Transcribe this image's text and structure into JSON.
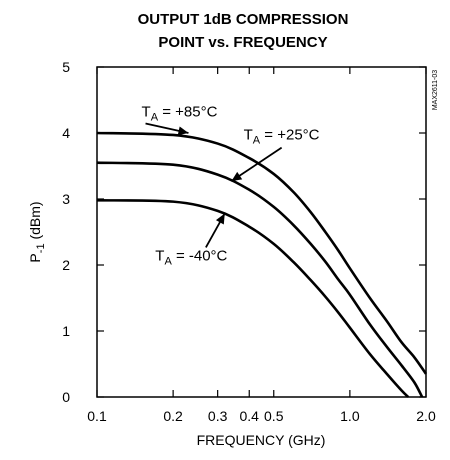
{
  "chart_data": {
    "type": "line",
    "title_lines": [
      "OUTPUT 1dB COMPRESSION",
      "POINT vs. FREQUENCY"
    ],
    "xlabel": "FREQUENCY (GHz)",
    "ylabel_main": "P",
    "ylabel_sub": "-1",
    "ylabel_rest": " (dBm)",
    "x_scale": "log",
    "xlim": [
      0.1,
      2.0
    ],
    "ylim": [
      0,
      5
    ],
    "x_ticks": [
      0.1,
      0.2,
      0.3,
      0.4,
      0.5,
      1.0,
      2.0
    ],
    "x_tick_labels": [
      "0.1",
      "0.2",
      "0.3",
      "0.4",
      "0.5",
      "1.0",
      "2.0"
    ],
    "y_ticks": [
      0,
      1,
      2,
      3,
      4,
      5
    ],
    "y_tick_labels": [
      "0",
      "1",
      "2",
      "3",
      "4",
      "5"
    ],
    "grid": false,
    "figure_id": "MAX2611-03",
    "series": [
      {
        "name": "TA = +85°C",
        "label_main": "T",
        "label_sub": "A",
        "label_rest": " = +85°C",
        "x": [
          0.1,
          0.2,
          0.3,
          0.4,
          0.5,
          0.6,
          0.7,
          0.8,
          0.9,
          1.0,
          1.2,
          1.4,
          1.6,
          1.8,
          2.0
        ],
        "y": [
          4.0,
          3.97,
          3.84,
          3.62,
          3.38,
          3.1,
          2.8,
          2.5,
          2.22,
          1.95,
          1.5,
          1.15,
          0.83,
          0.6,
          0.35
        ]
      },
      {
        "name": "TA = +25°C",
        "label_main": "T",
        "label_sub": "A",
        "label_rest": " = +25°C",
        "x": [
          0.1,
          0.2,
          0.3,
          0.4,
          0.5,
          0.6,
          0.7,
          0.8,
          0.9,
          1.0,
          1.2,
          1.4,
          1.6,
          1.8,
          1.93
        ],
        "y": [
          3.55,
          3.52,
          3.37,
          3.14,
          2.88,
          2.6,
          2.32,
          2.05,
          1.78,
          1.55,
          1.1,
          0.76,
          0.48,
          0.22,
          0.0
        ]
      },
      {
        "name": "TA = -40°C",
        "label_main": "T",
        "label_sub": "A",
        "label_rest": " = -40°C",
        "x": [
          0.1,
          0.2,
          0.3,
          0.4,
          0.5,
          0.6,
          0.7,
          0.8,
          0.9,
          1.0,
          1.2,
          1.4,
          1.6,
          1.7
        ],
        "y": [
          2.98,
          2.96,
          2.82,
          2.58,
          2.32,
          2.04,
          1.77,
          1.52,
          1.28,
          1.05,
          0.65,
          0.35,
          0.1,
          0.0
        ]
      }
    ],
    "annotations": [
      {
        "series": 0,
        "text_x": 0.15,
        "text_y": 4.25,
        "arrow_x": 0.23,
        "arrow_y": 4.0
      },
      {
        "series": 1,
        "text_x": 0.38,
        "text_y": 3.9,
        "arrow_x": 0.34,
        "arrow_y": 3.27
      },
      {
        "series": 2,
        "text_x": 0.17,
        "text_y": 2.07,
        "arrow_x": 0.32,
        "arrow_y": 2.78
      }
    ]
  }
}
